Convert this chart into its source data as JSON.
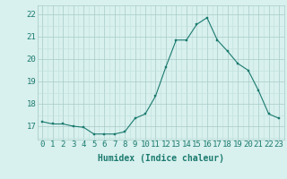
{
  "x": [
    0,
    1,
    2,
    3,
    4,
    5,
    6,
    7,
    8,
    9,
    10,
    11,
    12,
    13,
    14,
    15,
    16,
    17,
    18,
    19,
    20,
    21,
    22,
    23
  ],
  "y": [
    17.2,
    17.1,
    17.1,
    17.0,
    16.95,
    16.65,
    16.65,
    16.65,
    16.75,
    17.35,
    17.55,
    18.35,
    19.65,
    20.85,
    20.85,
    21.55,
    21.85,
    20.85,
    20.35,
    19.8,
    19.5,
    18.6,
    17.55,
    17.35
  ],
  "line_color": "#1a7a6e",
  "marker_color": "#1a7a6e",
  "bg_color": "#d8f0ee",
  "grid_color_major": "#a8ccc8",
  "grid_color_minor": "#c0e0dc",
  "xlabel": "Humidex (Indice chaleur)",
  "ylabel_ticks": [
    17,
    18,
    19,
    20,
    21,
    22
  ],
  "ylim": [
    16.4,
    22.4
  ],
  "xlim": [
    -0.5,
    23.5
  ],
  "tick_color": "#1a7a6e",
  "label_fontsize": 7,
  "tick_fontsize": 6.5
}
